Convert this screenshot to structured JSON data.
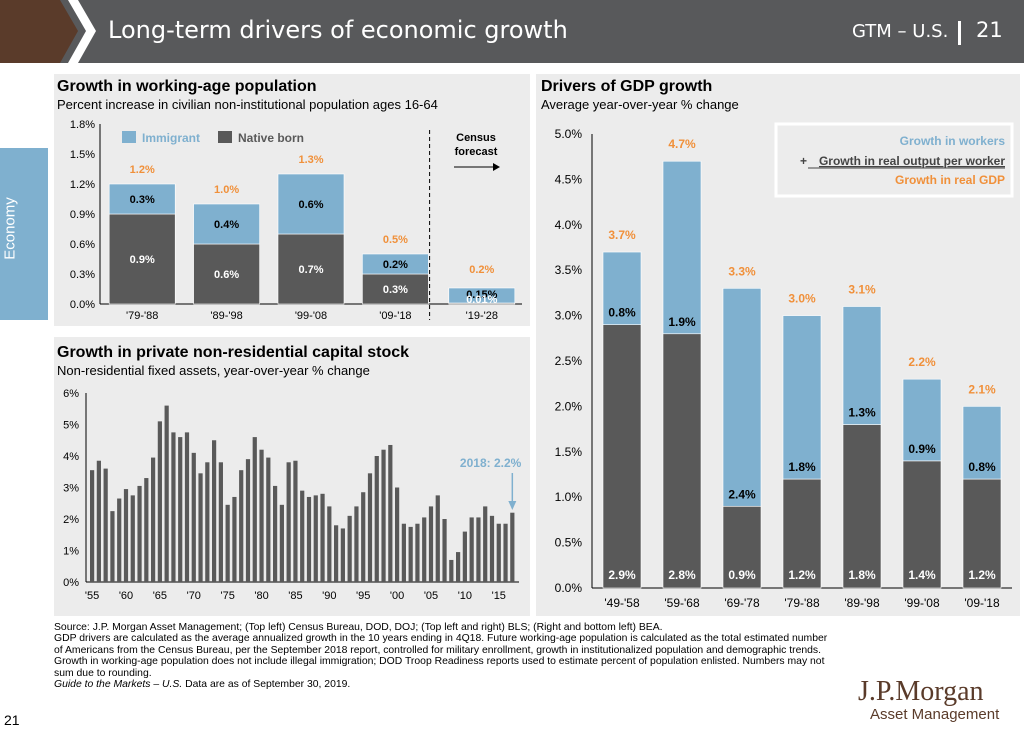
{
  "header": {
    "title": "Long-term drivers of economic growth",
    "gtm": "GTM – U.S.",
    "page": "21",
    "colors": {
      "bar": "#58595b",
      "brand": "#5a3b2a"
    }
  },
  "side_tab": {
    "label": "Economy",
    "color": "#7fb0cf"
  },
  "panels": {
    "working_age": {
      "title": "Growth in working-age population",
      "subtitle": "Percent increase in civilian non-institutional population ages 16-64",
      "census_label_1": "Census",
      "census_label_2": "forecast"
    },
    "capital_stock": {
      "title": "Growth in private non-residential capital stock",
      "subtitle": "Non-residential fixed assets, year-over-year % change",
      "annotation": "2018: 2.2%"
    },
    "gdp": {
      "title": "Drivers of GDP growth",
      "subtitle": "Average year-over-year % change"
    }
  },
  "chart_data": [
    {
      "type": "bar",
      "stacked": true,
      "categories": [
        "'79-'88",
        "'89-'98",
        "'99-'08",
        "'09-'18",
        "'19-'28"
      ],
      "series": [
        {
          "name": "Native born",
          "values": [
            0.9,
            0.6,
            0.7,
            0.3,
            0.01
          ],
          "labels": [
            "0.9%",
            "0.6%",
            "0.7%",
            "0.3%",
            "0.01%"
          ],
          "color": "#595959"
        },
        {
          "name": "Immigrant",
          "values": [
            0.3,
            0.4,
            0.6,
            0.2,
            0.15
          ],
          "labels": [
            "0.3%",
            "0.4%",
            "0.6%",
            "0.2%",
            "0.15%"
          ],
          "color": "#7fb0cf"
        }
      ],
      "totals": [
        "1.2%",
        "1.0%",
        "1.3%",
        "0.5%",
        "0.2%"
      ],
      "ylim": [
        0,
        1.8
      ],
      "yticks": [
        "0.0%",
        "0.3%",
        "0.6%",
        "0.9%",
        "1.2%",
        "1.5%",
        "1.8%"
      ],
      "legend_position": "top-left",
      "total_color": "#f0903a"
    },
    {
      "type": "bar",
      "x_start": 1955,
      "values": [
        3.55,
        3.85,
        3.6,
        2.25,
        2.65,
        2.95,
        2.75,
        3.05,
        3.3,
        3.95,
        5.1,
        5.6,
        4.75,
        4.6,
        4.75,
        4.1,
        3.45,
        3.8,
        4.5,
        3.8,
        2.45,
        2.7,
        3.55,
        3.9,
        4.6,
        4.2,
        3.95,
        3.05,
        2.45,
        3.8,
        3.85,
        2.9,
        2.7,
        2.75,
        2.8,
        2.4,
        1.8,
        1.7,
        2.1,
        2.4,
        2.85,
        3.45,
        4.0,
        4.2,
        4.35,
        3.0,
        1.85,
        1.75,
        1.85,
        2.05,
        2.4,
        2.75,
        2.0,
        0.7,
        0.95,
        1.6,
        2.05,
        2.05,
        2.4,
        2.1,
        1.85,
        1.85,
        2.2
      ],
      "ylim": [
        0,
        6
      ],
      "yticks": [
        "0%",
        "1%",
        "2%",
        "3%",
        "4%",
        "5%",
        "6%"
      ],
      "xticks": [
        "'55",
        "'60",
        "'65",
        "'70",
        "'75",
        "'80",
        "'85",
        "'90",
        "'95",
        "'00",
        "'05",
        "'10",
        "'15"
      ],
      "color": "#595959",
      "annotation_color": "#7fb0cf"
    },
    {
      "type": "bar",
      "stacked": true,
      "categories": [
        "'49-'58",
        "'59-'68",
        "'69-'78",
        "'79-'88",
        "'89-'98",
        "'99-'08",
        "'09-'18"
      ],
      "series": [
        {
          "name": "Growth in workers",
          "values": [
            2.9,
            2.8,
            0.9,
            1.2,
            1.8,
            1.4,
            1.2
          ],
          "labels": [
            "2.9%",
            "2.8%",
            "0.9%",
            "1.2%",
            "1.8%",
            "1.4%",
            "1.2%"
          ],
          "color": "#595959"
        },
        {
          "name": "Growth in real output per worker",
          "values": [
            0.8,
            1.9,
            2.4,
            1.8,
            1.3,
            0.9,
            0.8
          ],
          "labels": [
            "0.8%",
            "1.9%",
            "2.4%",
            "1.8%",
            "1.3%",
            "0.9%",
            "0.8%"
          ],
          "color": "#7fb0cf"
        }
      ],
      "totals": [
        "3.7%",
        "4.7%",
        "3.3%",
        "3.0%",
        "3.1%",
        "2.2%",
        "2.1%"
      ],
      "total_name": "Growth in real GDP",
      "ylim": [
        0,
        5
      ],
      "yticks": [
        "0.0%",
        "0.5%",
        "1.0%",
        "1.5%",
        "2.0%",
        "2.5%",
        "3.0%",
        "3.5%",
        "4.0%",
        "4.5%",
        "5.0%"
      ],
      "legend_position": "top-right",
      "legend_prefix": "+",
      "total_color": "#f0903a"
    }
  ],
  "source": {
    "lines": [
      "Source: J.P. Morgan Asset Management; (Top left) Census Bureau, DOD, DOJ; (Top left and right) BLS; (Right and bottom left) BEA.",
      "GDP drivers are calculated as the average annualized growth in the 10 years ending in 4Q18. Future working-age population is calculated as the total estimated number of Americans from the Census Bureau, per the September 2018 report, controlled for military enrollment, growth in institutionalized population and demographic trends. Growth in working-age population does not include illegal immigration; DOD Troop Readiness reports used to estimate percent of population enlisted. Numbers may not sum due to rounding."
    ],
    "guide": "Guide to the Markets – U.S.",
    "asof": " Data are as of September 30, 2019."
  },
  "logo": {
    "name": "J.P.Morgan",
    "sub": "Asset Management"
  },
  "page_number": "21"
}
